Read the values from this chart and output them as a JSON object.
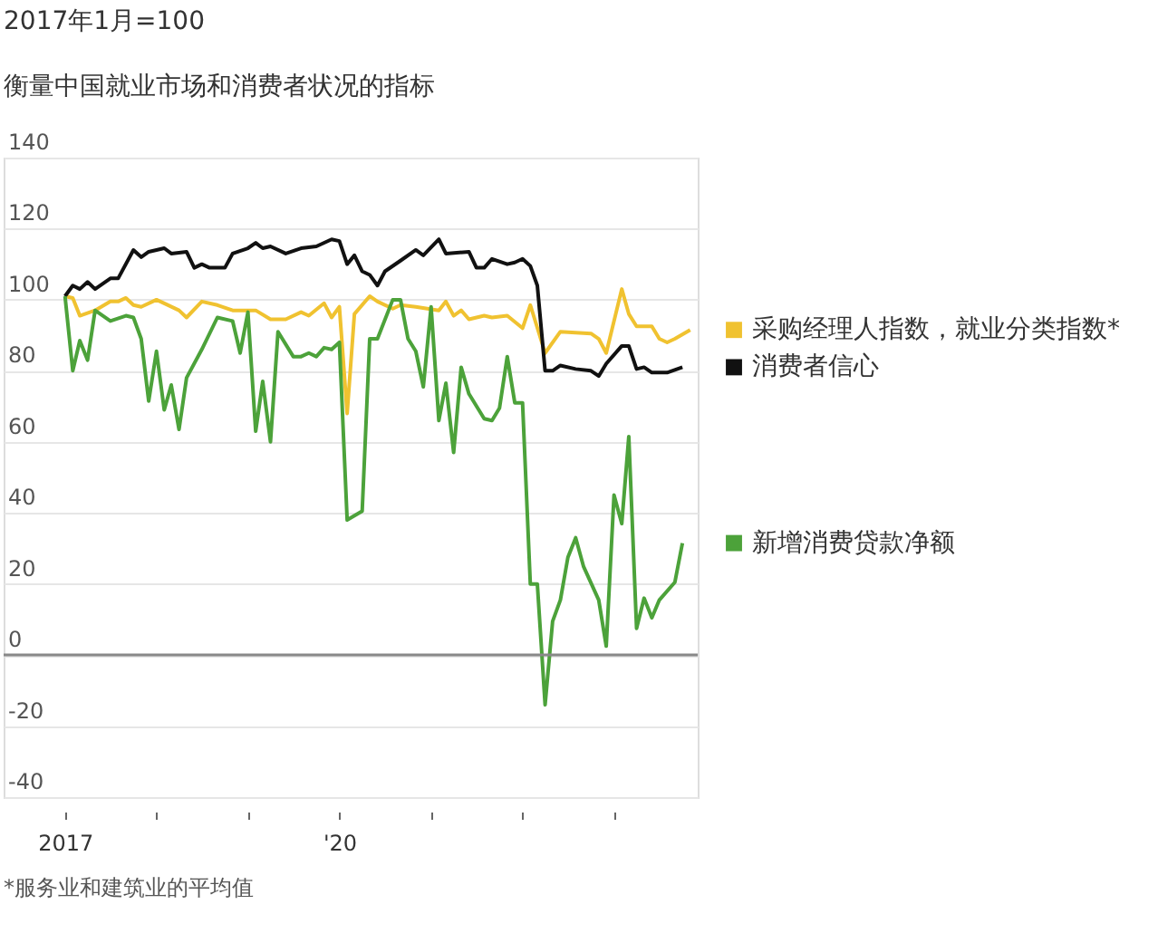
{
  "chart_data": {
    "type": "line",
    "title": "衡量中国就业市场和消费者状况的指标",
    "ylabel": "2017年1月=100",
    "annotations": [
      "*服务业和建筑业的平均值"
    ],
    "xlim": [
      "2016-05",
      "2023-12"
    ],
    "xticks": [
      {
        "value": "2017-01",
        "label": "2017"
      },
      {
        "value": "2018-01",
        "label": null
      },
      {
        "value": "2019-01",
        "label": null
      },
      {
        "value": "2020-01",
        "label": "'20"
      },
      {
        "value": "2021-01",
        "label": null
      },
      {
        "value": "2022-01",
        "label": null
      },
      {
        "value": "2023-01",
        "label": null
      }
    ],
    "ylim": [
      -40,
      140
    ],
    "yticks": [
      -40,
      -20,
      0,
      20,
      40,
      60,
      80,
      100,
      120,
      140
    ],
    "grid": "y",
    "legend": "right",
    "line_style": "solid",
    "ref_lines": [
      {
        "axis": "y",
        "value": 0,
        "color": "#888888"
      }
    ],
    "series": [
      {
        "name": "采购经理人指数，就业分类指数*",
        "color": "#f0c230",
        "x": [
          "2017-01",
          "2017-02",
          "2017-03",
          "2017-05",
          "2017-07",
          "2017-08",
          "2017-09",
          "2017-10",
          "2017-11",
          "2018-01",
          "2018-02",
          "2018-04",
          "2018-05",
          "2018-07",
          "2018-09",
          "2018-11",
          "2019-02",
          "2019-04",
          "2019-06",
          "2019-08",
          "2019-09",
          "2019-11",
          "2019-12",
          "2020-01",
          "2020-02",
          "2020-03",
          "2020-05",
          "2020-06",
          "2020-08",
          "2020-09",
          "2020-11",
          "2021-02",
          "2021-03",
          "2021-04",
          "2021-05",
          "2021-06",
          "2021-08",
          "2021-09",
          "2021-11",
          "2022-01",
          "2022-02",
          "2022-04",
          "2022-06",
          "2022-10",
          "2022-11",
          "2022-12",
          "2023-02",
          "2023-03",
          "2023-04",
          "2023-06",
          "2023-07",
          "2023-08",
          "2023-09",
          "2023-11"
        ],
        "values": [
          101,
          100.5,
          95.5,
          97,
          99.5,
          99.5,
          100.5,
          98.5,
          98,
          100,
          99,
          97,
          95,
          99.5,
          98.5,
          97,
          97,
          94.5,
          94.5,
          96.5,
          95.5,
          99,
          95,
          98,
          68,
          96,
          101,
          99.5,
          97.5,
          98.5,
          98,
          97,
          99.5,
          95.5,
          97,
          94.5,
          95.5,
          95,
          95.5,
          92,
          98.5,
          85,
          91,
          90.5,
          89,
          85,
          103,
          96,
          92.5,
          92.5,
          89,
          88,
          89,
          91.5
        ]
      },
      {
        "name": "消费者信心",
        "color": "#111111",
        "x": [
          "2017-01",
          "2017-02",
          "2017-03",
          "2017-04",
          "2017-05",
          "2017-07",
          "2017-08",
          "2017-10",
          "2017-11",
          "2017-12",
          "2018-02",
          "2018-03",
          "2018-05",
          "2018-06",
          "2018-07",
          "2018-08",
          "2018-10",
          "2018-11",
          "2019-01",
          "2019-02",
          "2019-03",
          "2019-04",
          "2019-06",
          "2019-08",
          "2019-10",
          "2019-12",
          "2020-01",
          "2020-02",
          "2020-03",
          "2020-04",
          "2020-05",
          "2020-06",
          "2020-07",
          "2020-09",
          "2020-11",
          "2020-12",
          "2021-02",
          "2021-03",
          "2021-06",
          "2021-07",
          "2021-08",
          "2021-09",
          "2021-11",
          "2021-12",
          "2022-01",
          "2022-02",
          "2022-03",
          "2022-04",
          "2022-05",
          "2022-06",
          "2022-08",
          "2022-10",
          "2022-11",
          "2022-12",
          "2023-02",
          "2023-03",
          "2023-04",
          "2023-05",
          "2023-06",
          "2023-08",
          "2023-10"
        ],
        "values": [
          101,
          104,
          103,
          105,
          103,
          106,
          106,
          114,
          112,
          113.5,
          114.5,
          113,
          113.5,
          109,
          110,
          109,
          109,
          113,
          114.5,
          116,
          114.5,
          115,
          113,
          114.5,
          115,
          117,
          116.5,
          110,
          112.5,
          108,
          107,
          104,
          108,
          111,
          114,
          112.5,
          117,
          113,
          113.5,
          109,
          109,
          111.5,
          110,
          110.5,
          111.5,
          109.5,
          104,
          80,
          80,
          81.5,
          80.5,
          80,
          78.5,
          82,
          87,
          87,
          80.5,
          81,
          79.5,
          79.5,
          81
        ]
      },
      {
        "name": "新增消费贷款净额",
        "color": "#4ca23a",
        "x": [
          "2017-01",
          "2017-02",
          "2017-03",
          "2017-04",
          "2017-05",
          "2017-07",
          "2017-09",
          "2017-10",
          "2017-11",
          "2017-12",
          "2018-01",
          "2018-02",
          "2018-03",
          "2018-04",
          "2018-05",
          "2018-07",
          "2018-09",
          "2018-11",
          "2018-12",
          "2019-01",
          "2019-02",
          "2019-03",
          "2019-04",
          "2019-05",
          "2019-07",
          "2019-08",
          "2019-09",
          "2019-10",
          "2019-11",
          "2019-12",
          "2020-01",
          "2020-02",
          "2020-04",
          "2020-05",
          "2020-06",
          "2020-08",
          "2020-09",
          "2020-10",
          "2020-11",
          "2020-12",
          "2021-01",
          "2021-02",
          "2021-03",
          "2021-04",
          "2021-05",
          "2021-06",
          "2021-08",
          "2021-09",
          "2021-10",
          "2021-11",
          "2021-12",
          "2022-01",
          "2022-02",
          "2022-03",
          "2022-04",
          "2022-05",
          "2022-06",
          "2022-07",
          "2022-08",
          "2022-09",
          "2022-11",
          "2022-12",
          "2023-01",
          "2023-02",
          "2023-03",
          "2023-04",
          "2023-05",
          "2023-06",
          "2023-07",
          "2023-09",
          "2023-10"
        ],
        "values": [
          101,
          80,
          88.5,
          83,
          97,
          94,
          95.5,
          95,
          89,
          71.5,
          85.5,
          69,
          76,
          63.5,
          78,
          86,
          95,
          94,
          85,
          96.5,
          63,
          77,
          60,
          91,
          84,
          84,
          85,
          84,
          86.5,
          86,
          88,
          38,
          40.5,
          89,
          89,
          100,
          100,
          89,
          85.5,
          75.5,
          98,
          66,
          76.5,
          57,
          81,
          73.5,
          66.5,
          66,
          69.5,
          84,
          71,
          71,
          20,
          20,
          -14,
          9.5,
          15.5,
          27.5,
          33,
          25,
          15.5,
          2.5,
          45,
          37,
          61.5,
          7.5,
          16,
          10.5,
          15.5,
          20.5,
          31.5
        ]
      }
    ]
  }
}
